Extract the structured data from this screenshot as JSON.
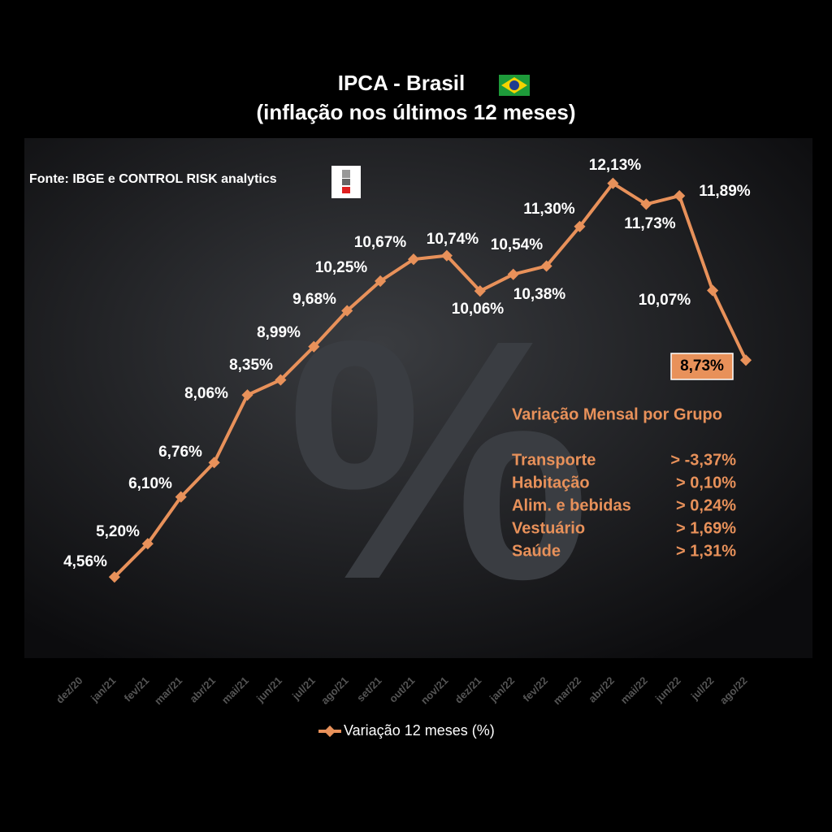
{
  "chart_data": {
    "type": "line",
    "title": "IPCA - Brasil",
    "subtitle": "(inflação nos últimos 12 meses)",
    "source": "Fonte: IBGE e CONTROL RISK analytics",
    "categories": [
      "dez/20",
      "jan/21",
      "fev/21",
      "mar/21",
      "abr/21",
      "mai/21",
      "jun/21",
      "jul/21",
      "ago/21",
      "set/21",
      "out/21",
      "nov/21",
      "dez/21",
      "jan/22",
      "fev/22",
      "mar/22",
      "abr/22",
      "mai/22",
      "jun/22",
      "jul/22",
      "ago/22"
    ],
    "series": [
      {
        "name": "Variação 12 meses (%)",
        "color": "#e8915a",
        "values": [
          null,
          4.56,
          5.2,
          6.1,
          6.76,
          8.06,
          8.35,
          8.99,
          9.68,
          10.25,
          10.67,
          10.74,
          10.06,
          10.38,
          10.54,
          11.3,
          12.13,
          11.73,
          11.89,
          10.07,
          8.73
        ],
        "value_labels": [
          null,
          "4,56%",
          "5,20%",
          "6,10%",
          "6,76%",
          "8,06%",
          "8,35%",
          "8,99%",
          "9,68%",
          "10,25%",
          "10,67%",
          "10,74%",
          "10,06%",
          "10,38%",
          "10,54%",
          "11,30%",
          "12,13%",
          "11,73%",
          "11,89%",
          "10,07%",
          "8,73%"
        ]
      }
    ],
    "ylim": [
      3,
      13
    ],
    "annotation": {
      "title": "Variação Mensal por Grupo",
      "rows": [
        [
          "Transporte",
          "> -3,37%"
        ],
        [
          "Habitação",
          "> 0,10%"
        ],
        [
          "Alim. e bebidas",
          "> 0,24%"
        ],
        [
          "Vestuário",
          "> 1,69%"
        ],
        [
          "Saúde",
          "> 1,31%"
        ]
      ]
    }
  }
}
